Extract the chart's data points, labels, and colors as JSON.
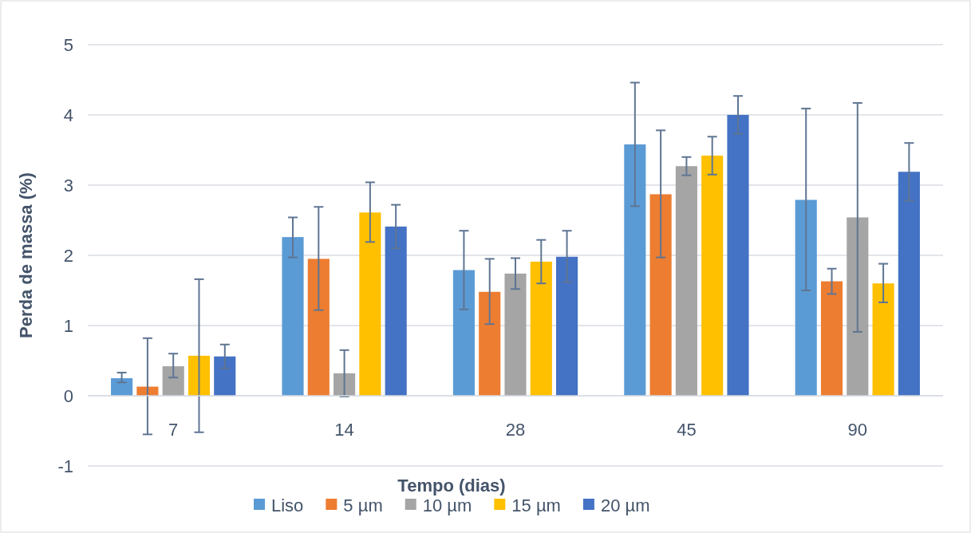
{
  "chart_data": {
    "type": "bar",
    "ylabel": "Perda de massa (%)",
    "xlabel": "Tempo (dias)",
    "categories": [
      "7",
      "14",
      "28",
      "45",
      "90"
    ],
    "ylim": [
      -1,
      5
    ],
    "yticks": [
      -1,
      0,
      1,
      2,
      3,
      4,
      5
    ],
    "grid": "y",
    "legend": "bottom",
    "series": [
      {
        "name": "Liso",
        "color": "#5b9bd5",
        "values": [
          0.25,
          2.26,
          1.79,
          3.58,
          2.79
        ],
        "errors": [
          [
            0.19,
            0.33
          ],
          [
            1.97,
            2.54
          ],
          [
            1.23,
            2.35
          ],
          [
            2.7,
            4.46
          ],
          [
            1.5,
            4.09
          ]
        ]
      },
      {
        "name": "5 µm",
        "color": "#ed7d31",
        "values": [
          0.13,
          1.95,
          1.48,
          2.87,
          1.63
        ],
        "errors": [
          [
            -0.55,
            0.82
          ],
          [
            1.22,
            2.69
          ],
          [
            1.02,
            1.95
          ],
          [
            1.97,
            3.78
          ],
          [
            1.45,
            1.81
          ]
        ]
      },
      {
        "name": "10 µm",
        "color": "#a5a5a5",
        "values": [
          0.42,
          0.32,
          1.74,
          3.27,
          2.54
        ],
        "errors": [
          [
            0.26,
            0.6
          ],
          [
            -0.01,
            0.65
          ],
          [
            1.52,
            1.96
          ],
          [
            3.14,
            3.4
          ],
          [
            0.91,
            4.17
          ]
        ]
      },
      {
        "name": "15 µm",
        "color": "#ffc000",
        "values": [
          0.57,
          2.61,
          1.91,
          3.42,
          1.6
        ],
        "errors": [
          [
            -0.52,
            1.66
          ],
          [
            2.19,
            3.04
          ],
          [
            1.6,
            2.22
          ],
          [
            3.15,
            3.69
          ],
          [
            1.33,
            1.88
          ]
        ]
      },
      {
        "name": "20 µm",
        "color": "#4472c4",
        "values": [
          0.56,
          2.41,
          1.98,
          4.0,
          3.19
        ],
        "errors": [
          [
            0.39,
            0.73
          ],
          [
            2.1,
            2.72
          ],
          [
            1.62,
            2.35
          ],
          [
            3.73,
            4.27
          ],
          [
            2.78,
            3.6
          ]
        ]
      }
    ]
  }
}
